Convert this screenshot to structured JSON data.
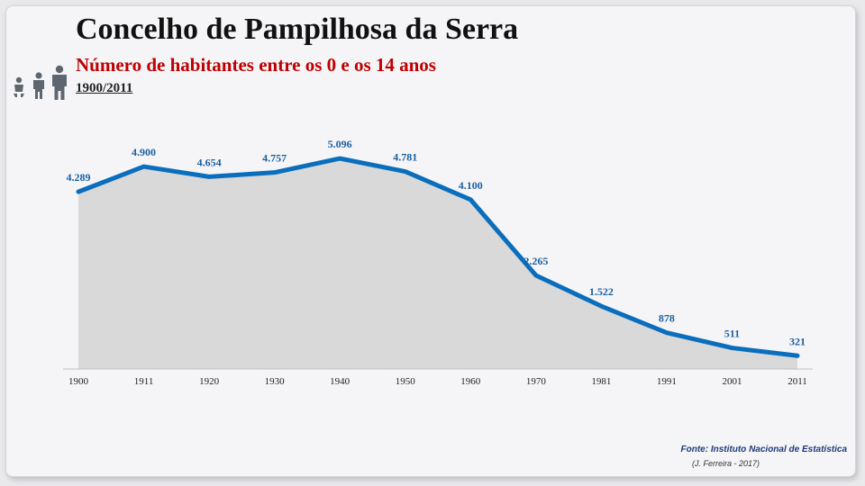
{
  "header": {
    "title": "Concelho de Pampilhosa da Serra",
    "subtitle": "Número de habitantes entre os 0 e os 14 anos",
    "period": "1900/2011"
  },
  "icons": {
    "people": "people-children-icon"
  },
  "colors": {
    "line": "#0a6ebd",
    "area": "#d9d9d9",
    "label": "#1a5fa0",
    "subtitle": "#c00000"
  },
  "footer": {
    "source": "Fonte: Instituto Nacional de Estatística",
    "author": "(J. Ferreira - 2017)"
  },
  "chart_data": {
    "type": "area",
    "categories": [
      "1900",
      "1911",
      "1920",
      "1930",
      "1940",
      "1950",
      "1960",
      "1970",
      "1981",
      "1991",
      "2001",
      "2011"
    ],
    "values": [
      4289,
      4900,
      4654,
      4757,
      5096,
      4781,
      4100,
      2265,
      1522,
      878,
      511,
      321
    ],
    "data_labels": [
      "4.289",
      "4.900",
      "4.654",
      "4.757",
      "5.096",
      "4.781",
      "4.100",
      "2.265",
      "1.522",
      "878",
      "511",
      "321"
    ],
    "ylim": [
      0,
      5500
    ],
    "grid": false,
    "legend": "none"
  }
}
